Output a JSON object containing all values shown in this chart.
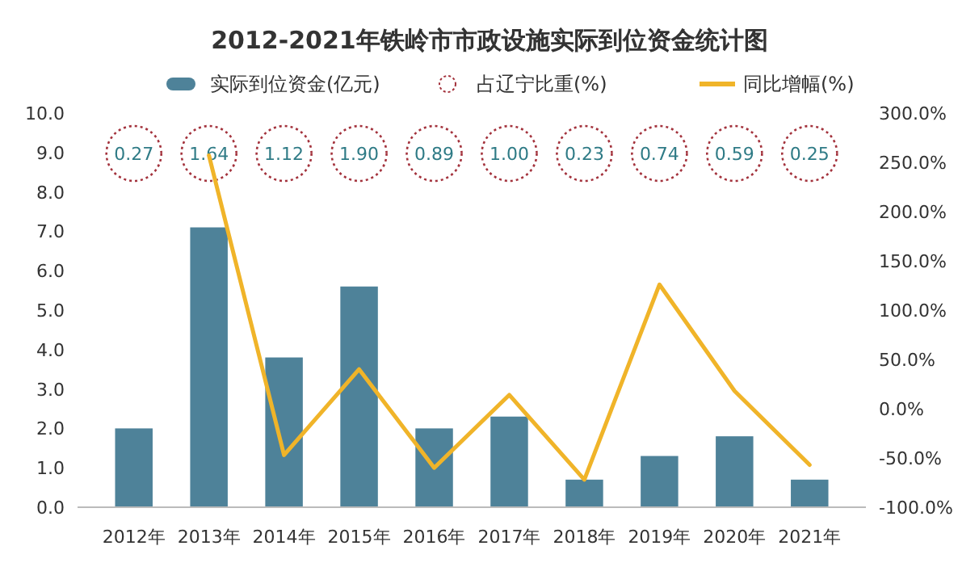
{
  "chart_data": [
    {
      "type": "bar",
      "title": "2012-2021年铁岭市市政设施实际到位资金统计图",
      "categories": [
        "2012年",
        "2013年",
        "2014年",
        "2015年",
        "2016年",
        "2017年",
        "2018年",
        "2019年",
        "2020年",
        "2021年"
      ],
      "series": [
        {
          "name": "实际到位资金(亿元)",
          "color": "#4e8299",
          "values": [
            2.0,
            7.1,
            3.8,
            5.6,
            2.0,
            2.3,
            0.7,
            1.3,
            1.8,
            0.7
          ]
        },
        {
          "name": "同比增幅(%)",
          "type": "line",
          "axis": "y2",
          "color": "#f0b429",
          "values": [
            null,
            257,
            -47,
            40,
            -60,
            14,
            -72,
            126,
            18,
            -57
          ]
        }
      ],
      "ylim": [
        0,
        10
      ],
      "yticks": [
        {
          "value": 0,
          "label": "0.0"
        },
        {
          "value": 1,
          "label": "1.0"
        },
        {
          "value": 2,
          "label": "2.0"
        },
        {
          "value": 3,
          "label": "3.0"
        },
        {
          "value": 4,
          "label": "4.0"
        },
        {
          "value": 5,
          "label": "5.0"
        },
        {
          "value": 6,
          "label": "6.0"
        },
        {
          "value": 7,
          "label": "7.0"
        },
        {
          "value": 8,
          "label": "8.0"
        },
        {
          "value": 9,
          "label": "9.0"
        },
        {
          "value": 10,
          "label": "10.0"
        }
      ],
      "y2lim": [
        -100,
        300
      ],
      "y2ticks": [
        {
          "value": -100,
          "label": "-100.0%"
        },
        {
          "value": -50,
          "label": "-50.0%"
        },
        {
          "value": 0,
          "label": "0.0%"
        },
        {
          "value": 50,
          "label": "50.0%"
        },
        {
          "value": 100,
          "label": "100.0%"
        },
        {
          "value": 150,
          "label": "150.0%"
        },
        {
          "value": 200,
          "label": "200.0%"
        },
        {
          "value": 250,
          "label": "250.0%"
        },
        {
          "value": 300,
          "label": "300.0%"
        }
      ],
      "legend": "top",
      "grid": false
    },
    {
      "type": "other",
      "categories": [
        null,
        null,
        null,
        null,
        null,
        null,
        null,
        null,
        null,
        null
      ],
      "series": [
        {
          "name": "占辽宁比重(%)",
          "color": "#a3323c",
          "values": [
            0.27,
            1.64,
            1.12,
            1.9,
            0.89,
            1.0,
            0.23,
            0.74,
            0.59,
            0.25
          ],
          "value_labels": [
            "0.27",
            "1.64",
            "1.12",
            "1.90",
            "0.89",
            "1.00",
            "0.23",
            "0.74",
            "0.59",
            "0.25"
          ]
        }
      ],
      "legend": "top"
    }
  ]
}
